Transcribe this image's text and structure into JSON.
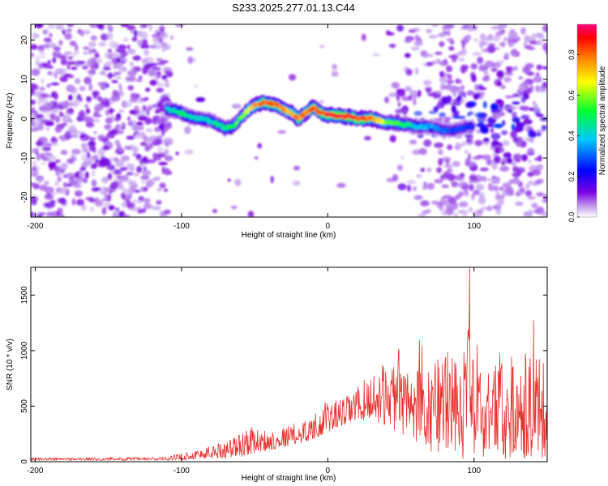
{
  "title": "S233.2025.277.01.13.C44",
  "chart_data": [
    {
      "type": "heatmap",
      "xlabel": "Height of straight line (km)",
      "ylabel": "Frequency (Hz)",
      "xlim": [
        -203,
        150
      ],
      "ylim": [
        -25,
        24
      ],
      "xticks": [
        -200,
        -100,
        0,
        100
      ],
      "yticks": [
        20,
        10,
        0,
        -10,
        -20
      ],
      "ridge_x": [
        -110,
        -105,
        -100,
        -95,
        -90,
        -85,
        -80,
        -75,
        -70,
        -65,
        -60,
        -55,
        -50,
        -45,
        -40,
        -35,
        -30,
        -25,
        -20,
        -15,
        -10,
        -5,
        0,
        5,
        10,
        15,
        20,
        25,
        30,
        35,
        40,
        45,
        50,
        55,
        60,
        65,
        70,
        75,
        80,
        85,
        90,
        95,
        100
      ],
      "ridge_freq": [
        2.5,
        2,
        1.5,
        0.5,
        0,
        0,
        -0.5,
        -1.5,
        -2.5,
        -2,
        0,
        2,
        3.5,
        4,
        4,
        3.5,
        2.5,
        1.5,
        0,
        1.5,
        3,
        1.5,
        1,
        1,
        0.5,
        0.5,
        0,
        0,
        0,
        -0.5,
        -1,
        -1,
        -1.5,
        -1.5,
        -2,
        -2,
        -2,
        -2.5,
        -3,
        -3,
        -2.5,
        -2,
        -2
      ],
      "ridge_amp": [
        0.45,
        0.5,
        0.55,
        0.5,
        0.45,
        0.45,
        0.45,
        0.5,
        0.5,
        0.55,
        0.65,
        0.7,
        0.8,
        0.88,
        0.9,
        0.88,
        0.82,
        0.8,
        0.85,
        0.88,
        0.9,
        0.92,
        0.95,
        0.95,
        0.95,
        0.95,
        0.92,
        0.9,
        0.85,
        0.75,
        0.65,
        0.6,
        0.55,
        0.5,
        0.45,
        0.4,
        0.38,
        0.35,
        0.32,
        0.3,
        0.3,
        0.28,
        0.28
      ],
      "colorbar": {
        "label": "Normalized spectral amplitude",
        "range": [
          0.0,
          0.95
        ],
        "ticks": [
          0.0,
          0.2,
          0.4,
          0.6,
          0.8
        ],
        "tick_labels": [
          "0.0",
          "0.2",
          "0.4",
          "0.6",
          "0.8"
        ],
        "colors": [
          "#ffffff",
          "#7a00e0",
          "#0000ff",
          "#00c8ff",
          "#00ff30",
          "#ffff00",
          "#ff7000",
          "#ff0080"
        ]
      }
    },
    {
      "type": "line",
      "xlabel": "Height of straight line (km)",
      "ylabel": "SNR (10 * v/v)",
      "xlim": [
        -203,
        150
      ],
      "ylim": [
        0,
        1750
      ],
      "xticks": [
        -200,
        -100,
        0,
        100
      ],
      "yticks": [
        0,
        500,
        1000,
        1500
      ],
      "series": [
        {
          "name": "SNR",
          "color": "#e8302e",
          "envelope_x": [
            -203,
            -150,
            -110,
            -100,
            -90,
            -80,
            -70,
            -60,
            -55,
            -50,
            -40,
            -30,
            -20,
            -10,
            0,
            10,
            20,
            30,
            40,
            50,
            60,
            70,
            80,
            90,
            95,
            100,
            110,
            120,
            130,
            140,
            150
          ],
          "envelope_low": [
            10,
            10,
            10,
            15,
            20,
            25,
            30,
            40,
            60,
            80,
            100,
            130,
            160,
            200,
            260,
            320,
            360,
            380,
            320,
            250,
            150,
            80,
            40,
            20,
            20,
            20,
            20,
            20,
            20,
            30,
            40
          ],
          "envelope_high": [
            40,
            40,
            45,
            80,
            110,
            150,
            200,
            260,
            330,
            300,
            280,
            320,
            360,
            420,
            560,
            560,
            680,
            800,
            900,
            1050,
            1150,
            1100,
            1450,
            1350,
            1750,
            1150,
            1300,
            1350,
            1200,
            1300,
            1150
          ],
          "peak": {
            "x": 97,
            "y": 1750
          }
        }
      ]
    }
  ]
}
